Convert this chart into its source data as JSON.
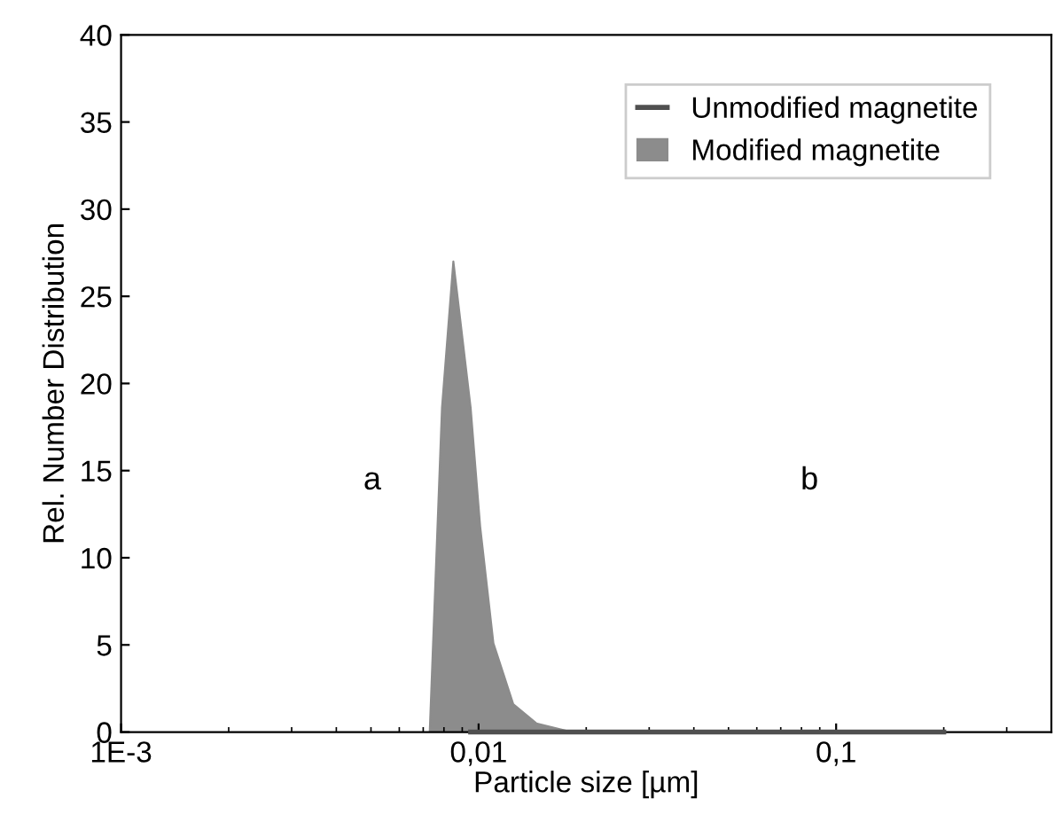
{
  "chart_data": {
    "type": "area",
    "xlabel": "Particle size [µm]",
    "ylabel": "Rel. Number Distribution",
    "log": "x",
    "xlim": [
      0.001,
      0.4
    ],
    "xticks": [
      {
        "value": 0.001,
        "label": "1E-3"
      },
      {
        "value": 0.01,
        "label": "0,01"
      },
      {
        "value": 0.1,
        "label": "0,1"
      }
    ],
    "ylim": [
      0,
      40
    ],
    "yticks": [
      0,
      5,
      10,
      15,
      20,
      25,
      30,
      35,
      40
    ],
    "legend": "top right",
    "grid": false,
    "series": [
      {
        "name": "Unmodified magnetite",
        "type": "line",
        "color": "#505050",
        "x": [
          0.0095,
          0.02,
          0.05,
          0.1,
          0.2
        ],
        "values": [
          0,
          0,
          0,
          0,
          0
        ]
      },
      {
        "name": "Modified magnetite",
        "color": "#8c8c8c",
        "x": [
          0.0073,
          0.0079,
          0.0085,
          0.0095,
          0.0101,
          0.011,
          0.0125,
          0.0145,
          0.0182
        ],
        "values": [
          0,
          18.6,
          27,
          18.6,
          11.8,
          5.1,
          1.6,
          0.5,
          0
        ]
      }
    ],
    "annotations": [
      "a",
      "b"
    ]
  }
}
